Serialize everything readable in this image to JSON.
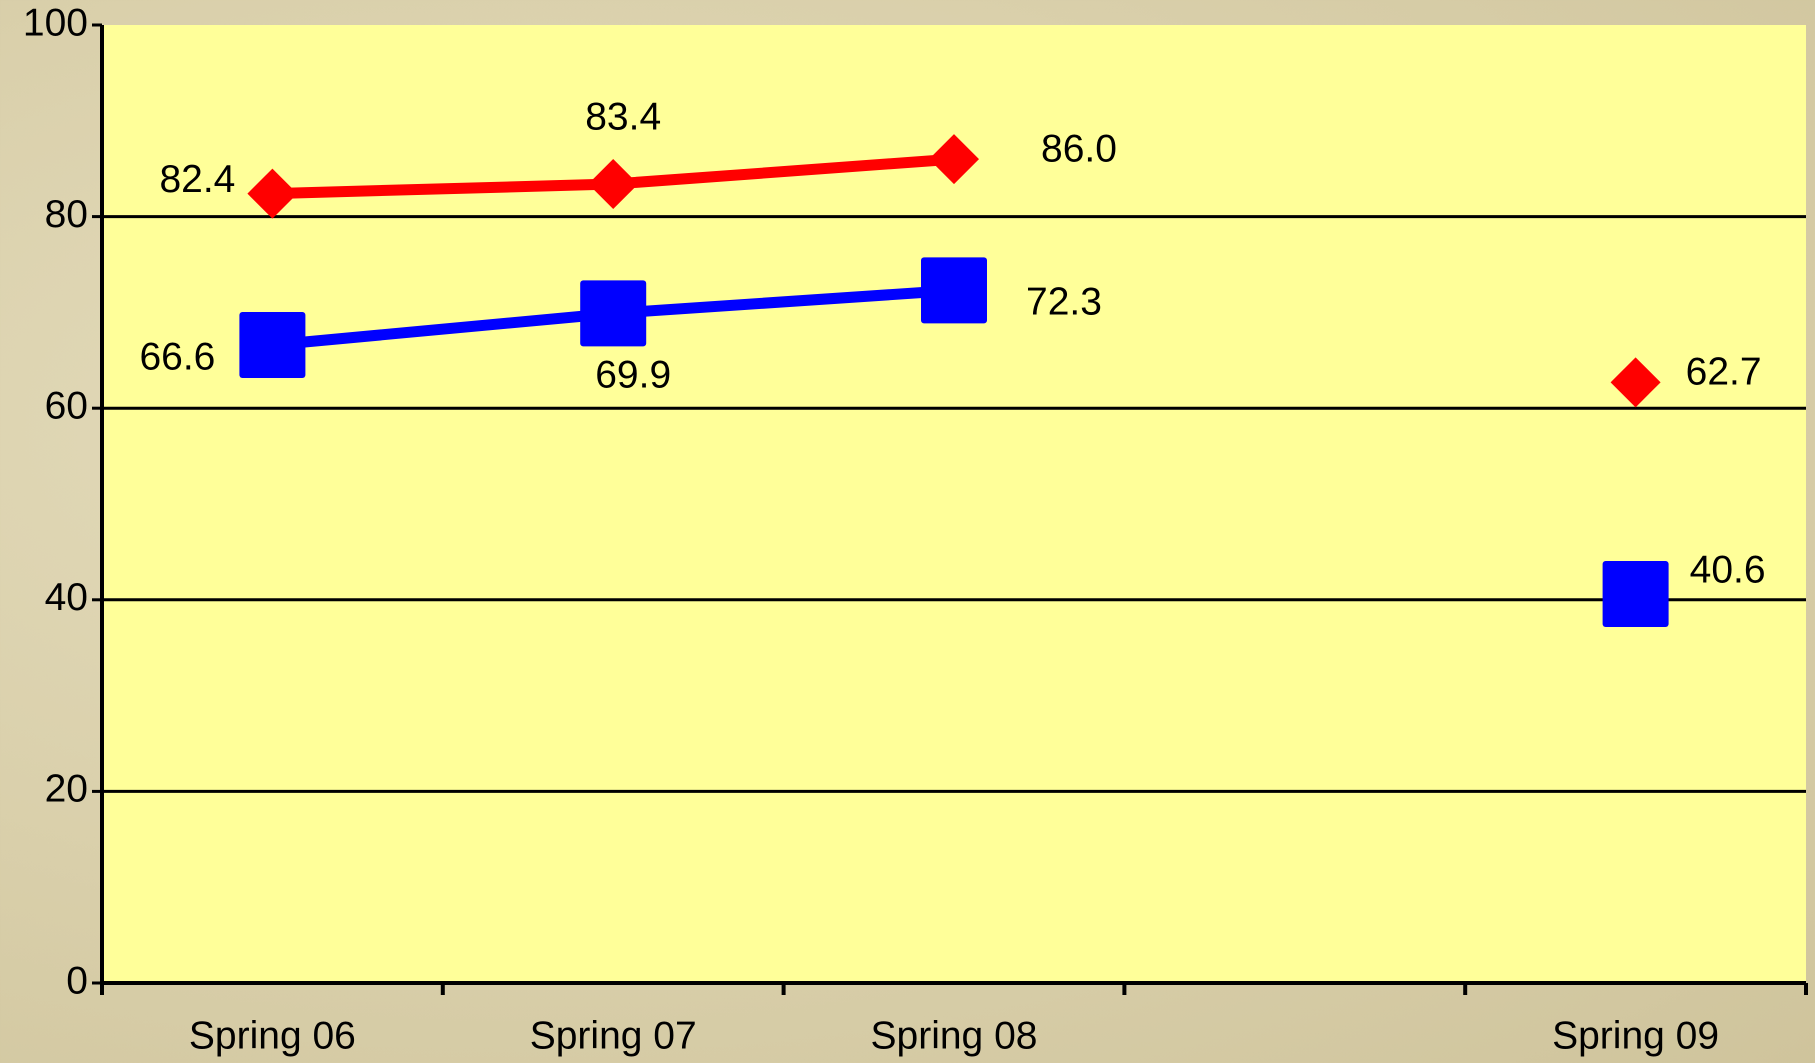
{
  "chart_data": {
    "type": "line",
    "categories": [
      "Spring 06",
      "Spring 07",
      "Spring 08",
      null,
      "Spring 09"
    ],
    "series": [
      {
        "color": "#ff0000",
        "marker": "diamond",
        "values": [
          82.4,
          83.4,
          86.0,
          null,
          62.7
        ],
        "value_labels": [
          "82.4",
          "83.4",
          "86.0",
          null,
          "62.7"
        ]
      },
      {
        "color": "#0000ff",
        "marker": "square",
        "values": [
          66.6,
          69.9,
          72.3,
          null,
          40.6
        ]
      }
    ],
    "ylim": [
      0,
      100
    ],
    "yticks": [
      0,
      20,
      40,
      60,
      80,
      100
    ],
    "grid": true,
    "plot_background": "#ffff99"
  }
}
